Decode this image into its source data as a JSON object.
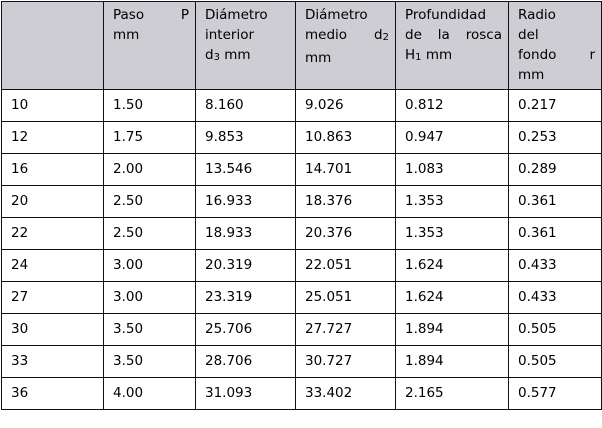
{
  "table": {
    "headers": [
      {
        "lines": []
      },
      {
        "lines": [
          "Paso P",
          "mm"
        ]
      },
      {
        "lines": [
          "Diámetro",
          "interior",
          "d3 mm"
        ]
      },
      {
        "lines": [
          "Diámetro",
          "medio d2",
          "mm"
        ]
      },
      {
        "lines": [
          "Profundidad",
          "de la rosca",
          "H1 mm"
        ]
      },
      {
        "lines": [
          "Radio",
          "del",
          "fondo r",
          "mm"
        ]
      }
    ],
    "rows": [
      [
        "10",
        "1.50",
        "8.160",
        "9.026",
        "0.812",
        "0.217"
      ],
      [
        "12",
        "1.75",
        "9.853",
        "10.863",
        "0.947",
        "0.253"
      ],
      [
        "16",
        "2.00",
        "13.546",
        "14.701",
        "1.083",
        "0.289"
      ],
      [
        "20",
        "2.50",
        "16.933",
        "18.376",
        "1.353",
        "0.361"
      ],
      [
        "22",
        "2.50",
        "18.933",
        "20.376",
        "1.353",
        "0.361"
      ],
      [
        "24",
        "3.00",
        "20.319",
        "22.051",
        "1.624",
        "0.433"
      ],
      [
        "27",
        "3.00",
        "23.319",
        "25.051",
        "1.624",
        "0.433"
      ],
      [
        "30",
        "3.50",
        "25.706",
        "27.727",
        "1.894",
        "0.505"
      ],
      [
        "33",
        "3.50",
        "28.706",
        "30.727",
        "1.894",
        "0.505"
      ],
      [
        "36",
        "4.00",
        "31.093",
        "33.402",
        "2.165",
        "0.577"
      ]
    ]
  }
}
